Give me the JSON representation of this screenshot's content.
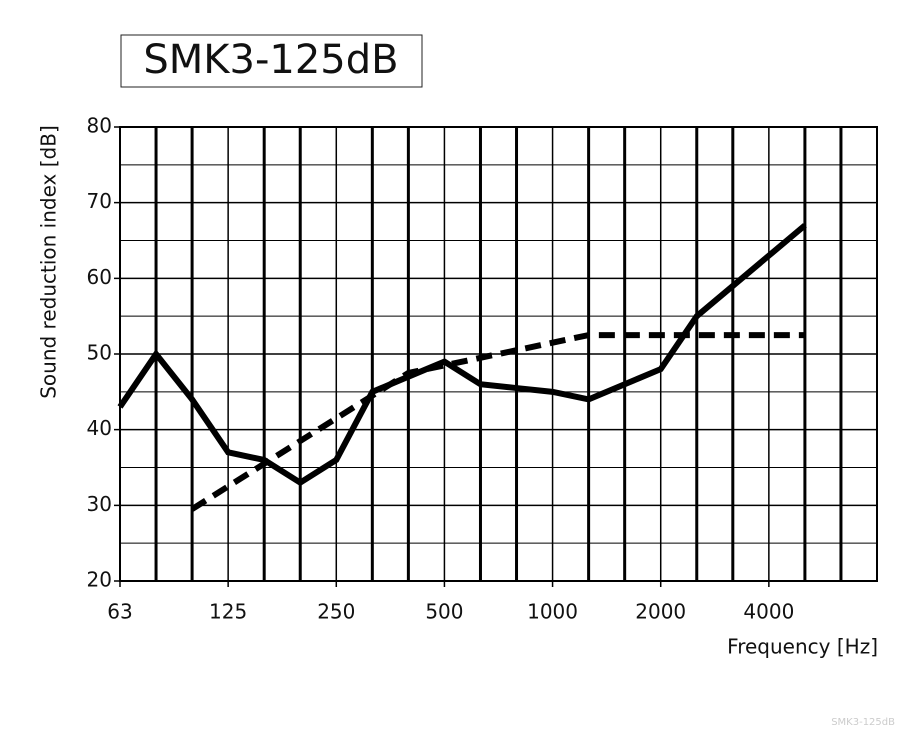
{
  "chart_data": {
    "type": "line",
    "title": "SMK3-125dB",
    "watermark": "SMK3-125dB",
    "ylabel": "Sound reduction index [dB]",
    "xlabel": "Frequency [Hz]",
    "categories": [
      "63",
      null,
      null,
      "125",
      null,
      null,
      "250",
      null,
      null,
      "500",
      null,
      null,
      "1000",
      null,
      null,
      "2000",
      null,
      null,
      "4000",
      null,
      null
    ],
    "series": [
      {
        "color": "#000000",
        "dash": false,
        "values": [
          43,
          50,
          44,
          37,
          36,
          33,
          36,
          45,
          47,
          49,
          46,
          45.5,
          45,
          44,
          46,
          48,
          55,
          59,
          63,
          67,
          null
        ]
      },
      {
        "color": "#000000",
        "dash": true,
        "values": [
          null,
          null,
          29.5,
          32.5,
          35.5,
          38.5,
          41.5,
          44.5,
          47.5,
          48.5,
          49.5,
          50.5,
          51.5,
          52.5,
          52.5,
          52.5,
          52.5,
          52.5,
          52.5,
          52.5,
          null
        ]
      }
    ],
    "ylim": [
      20,
      80
    ],
    "yticks": [
      20,
      30,
      40,
      50,
      60,
      70,
      80
    ],
    "yminorticks": [
      25,
      35,
      45,
      55,
      65,
      75
    ],
    "grid": true
  }
}
